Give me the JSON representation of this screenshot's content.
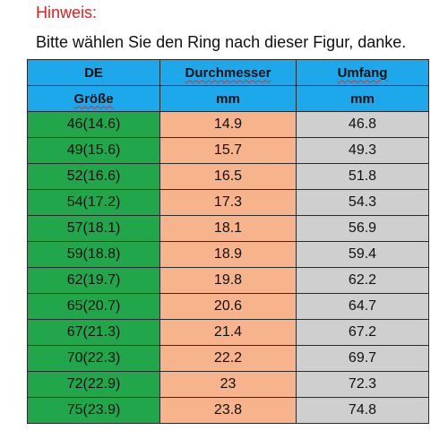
{
  "note": {
    "title": "Hinweis:",
    "text": "Bitte wählen Sie den Ring nach dieser Figur, danke."
  },
  "table": {
    "header_row1": [
      "DE",
      "Durchmesser",
      "Umfang"
    ],
    "header_row2": [
      "Größe",
      "mm",
      "mm"
    ],
    "rows": [
      [
        "46(14.6)",
        "14.9",
        "46.8"
      ],
      [
        "49(15.6)",
        "15.7",
        "49.3"
      ],
      [
        "52(16.6)",
        "16.5",
        "51.8"
      ],
      [
        "54(17.2)",
        "17.3",
        "54.3"
      ],
      [
        "57(18.1)",
        "18.1",
        "56.9"
      ],
      [
        "59(18.8)",
        "18.9",
        "59.4"
      ],
      [
        "62(19.7)",
        "19.8",
        "62.2"
      ],
      [
        "65(20.7)",
        "20.6",
        "64.7"
      ],
      [
        "67(21.3)",
        "21.4",
        "67.2"
      ],
      [
        "70(22.3)",
        "22.2",
        "69.7"
      ],
      [
        "72(22.9)",
        "23",
        "72.3"
      ],
      [
        "75(23.9)",
        "23.8",
        "74.8"
      ]
    ]
  },
  "colors": {
    "header": "#1ea8ec",
    "size_column": "#22a64c",
    "diameter_column": "#f6b38c",
    "circumference_column": "#cfcfcf",
    "note_title": "#e02020"
  }
}
